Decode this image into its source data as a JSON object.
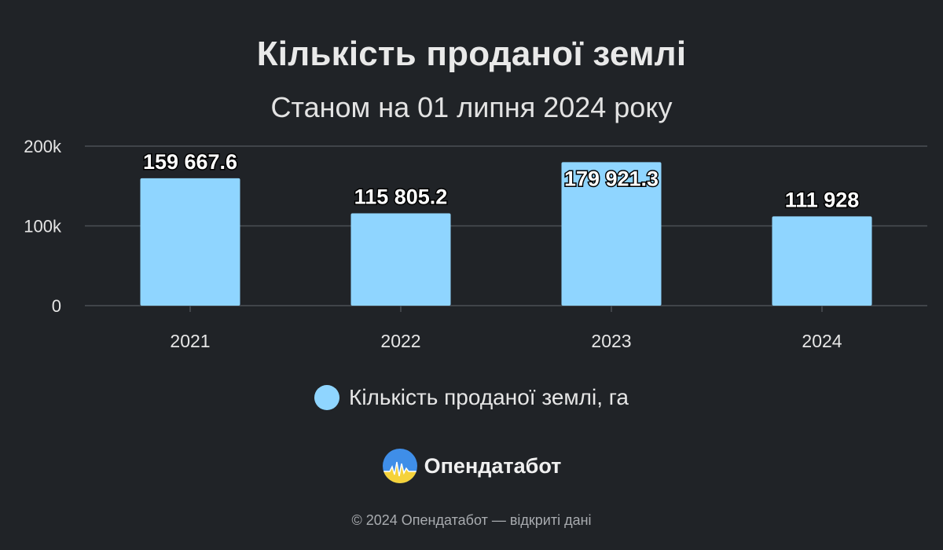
{
  "title": "Кількість проданої землі",
  "subtitle": "Станом на 01 липня 2024 року",
  "legend": {
    "label": "Кількість проданої землі, га"
  },
  "brand": {
    "name": "Опендатабот"
  },
  "footer": "© 2024 Опендатабот — відкриті дані",
  "colors": {
    "background": "#202327",
    "bar": "#8fd5ff",
    "grid": "#4b4f55",
    "text": "#e8e8e8"
  },
  "chart_data": {
    "type": "bar",
    "categories": [
      "2021",
      "2022",
      "2023",
      "2024"
    ],
    "values": [
      159667.6,
      115805.2,
      179921.3,
      111928
    ],
    "data_labels": [
      "159 667.6",
      "115 805.2",
      "179 921.3",
      "111 928"
    ],
    "ylim": [
      0,
      200000
    ],
    "yticks": [
      0,
      100000,
      200000
    ],
    "ytick_labels": [
      "0",
      "100k",
      "200k"
    ],
    "grid": true,
    "legend_position": "bottom",
    "series": [
      {
        "name": "Кількість проданої землі, га",
        "values": [
          159667.6,
          115805.2,
          179921.3,
          111928
        ]
      }
    ]
  }
}
